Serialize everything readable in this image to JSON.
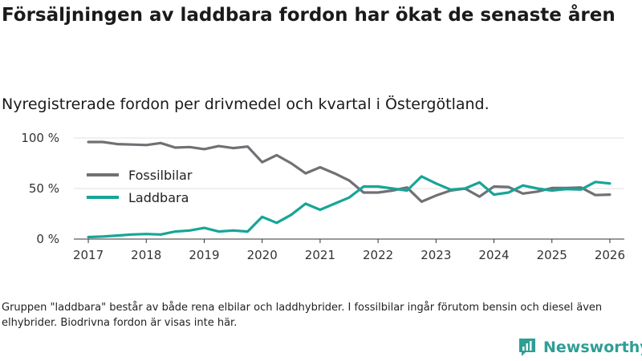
{
  "title": "Försäljningen av laddbara fordon har ökat de senaste åren",
  "subtitle": "Nyregistrerade fordon per drivmedel och kvartal i Östergötland.",
  "footnote": "Gruppen \"laddbara\" består av både rena elbilar och laddhybrider. I fossilbilar ingår förutom bensin och diesel även elhybrider. Biodrivna fordon är visas inte här.",
  "brand": {
    "name": "Newsworthy",
    "logo_icon": "newsworthy-chart-logo-icon",
    "color": "#2f9e95"
  },
  "chart_data": {
    "type": "line",
    "title": "Nyregistrerade fordon per drivmedel och kvartal i Östergötland.",
    "xlabel": "",
    "ylabel": "",
    "xlim": [
      2016.75,
      2026.25
    ],
    "ylim": [
      0,
      100
    ],
    "grid": true,
    "legend_position": "center-left",
    "x_ticks": [
      2017,
      2018,
      2019,
      2020,
      2021,
      2022,
      2023,
      2024,
      2025,
      2026
    ],
    "x_tick_labels": [
      "2017",
      "2018",
      "2019",
      "2020",
      "2021",
      "2022",
      "2023",
      "2024",
      "2025",
      "2026"
    ],
    "y_ticks": [
      0,
      50,
      100
    ],
    "y_tick_labels": [
      "0 %",
      "50 %",
      "100 %"
    ],
    "x": [
      2017.0,
      2017.25,
      2017.5,
      2017.75,
      2018.0,
      2018.25,
      2018.5,
      2018.75,
      2019.0,
      2019.25,
      2019.5,
      2019.75,
      2020.0,
      2020.25,
      2020.5,
      2020.75,
      2021.0,
      2021.25,
      2021.5,
      2021.75,
      2022.0,
      2022.25,
      2022.5,
      2022.75,
      2023.0,
      2023.25,
      2023.5,
      2023.75,
      2024.0,
      2024.25,
      2024.5,
      2024.75,
      2025.0,
      2025.25,
      2025.5,
      2025.75,
      2026.0
    ],
    "series": [
      {
        "name": "Fossilbilar",
        "color": "#717075",
        "values": [
          96,
          96,
          94,
          93.5,
          93,
          95,
          90.5,
          91,
          89,
          92,
          90,
          91.5,
          76,
          83,
          75,
          65,
          71,
          65,
          58,
          46,
          46,
          48,
          51,
          37,
          43,
          48,
          50,
          42,
          52,
          51.5,
          45,
          47,
          50.5,
          50.5,
          51,
          43.5,
          44
        ]
      },
      {
        "name": "Laddbara",
        "color": "#17a597",
        "values": [
          2,
          2.5,
          3.5,
          4.5,
          5,
          4.5,
          7.5,
          8.5,
          11,
          7.5,
          8.5,
          7.5,
          22,
          16,
          24,
          35,
          29,
          35,
          41,
          52,
          52,
          50,
          48,
          62,
          55,
          49,
          50,
          56,
          44,
          46,
          53,
          50,
          48,
          49.5,
          49,
          56.5,
          55
        ]
      }
    ]
  }
}
